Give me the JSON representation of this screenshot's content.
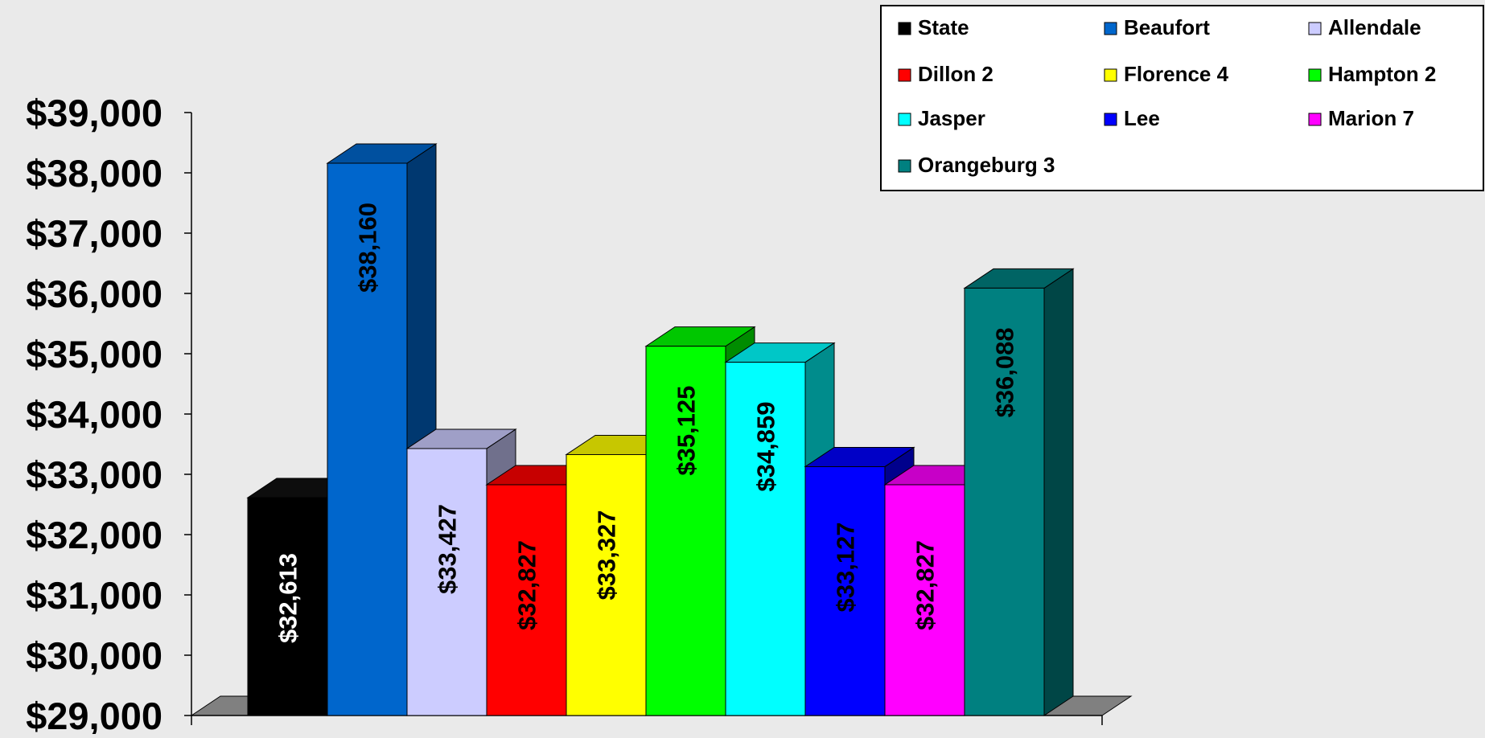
{
  "chart_data": {
    "type": "bar",
    "title": "",
    "xlabel": "",
    "ylabel": "",
    "ylim": [
      29000,
      39000
    ],
    "ytick_step": 1000,
    "yticks": [
      "$29,000",
      "$30,000",
      "$31,000",
      "$32,000",
      "$33,000",
      "$34,000",
      "$35,000",
      "$36,000",
      "$37,000",
      "$38,000",
      "$39,000"
    ],
    "grid": false,
    "legend_position": "top-right",
    "three_d": true,
    "categories": [
      "State",
      "Beaufort",
      "Allendale",
      "Dillon 2",
      "Florence 4",
      "Hampton 2",
      "Jasper",
      "Lee",
      "Marion 7",
      "Orangeburg 3"
    ],
    "values": [
      32613,
      38160,
      33427,
      32827,
      33327,
      35125,
      34859,
      33127,
      32827,
      36088
    ],
    "data_labels": [
      "$32,613",
      "$38,160",
      "$33,427",
      "$32,827",
      "$33,327",
      "$35,125",
      "$34,859",
      "$33,127",
      "$32,827",
      "$36,088"
    ],
    "series": [
      {
        "name": "State",
        "value": 32613,
        "label": "$32,613",
        "color": "#000000",
        "label_color": "#ffffff"
      },
      {
        "name": "Beaufort",
        "value": 38160,
        "label": "$38,160",
        "color": "#0066cc",
        "label_color": "#000000"
      },
      {
        "name": "Allendale",
        "value": 33427,
        "label": "$33,427",
        "color": "#ccccff",
        "label_color": "#000000"
      },
      {
        "name": "Dillon 2",
        "value": 32827,
        "label": "$32,827",
        "color": "#ff0000",
        "label_color": "#000000"
      },
      {
        "name": "Florence 4",
        "value": 33327,
        "label": "$33,327",
        "color": "#ffff00",
        "label_color": "#000000"
      },
      {
        "name": "Hampton 2",
        "value": 35125,
        "label": "$35,125",
        "color": "#00ff00",
        "label_color": "#000000"
      },
      {
        "name": "Jasper",
        "value": 34859,
        "label": "$34,859",
        "color": "#00ffff",
        "label_color": "#000000"
      },
      {
        "name": "Lee",
        "value": 33127,
        "label": "$33,127",
        "color": "#0000ff",
        "label_color": "#000000"
      },
      {
        "name": "Marion 7",
        "value": 32827,
        "label": "$32,827",
        "color": "#ff00ff",
        "label_color": "#000000"
      },
      {
        "name": "Orangeburg 3",
        "value": 36088,
        "label": "$36,088",
        "color": "#008080",
        "label_color": "#000000"
      }
    ]
  }
}
